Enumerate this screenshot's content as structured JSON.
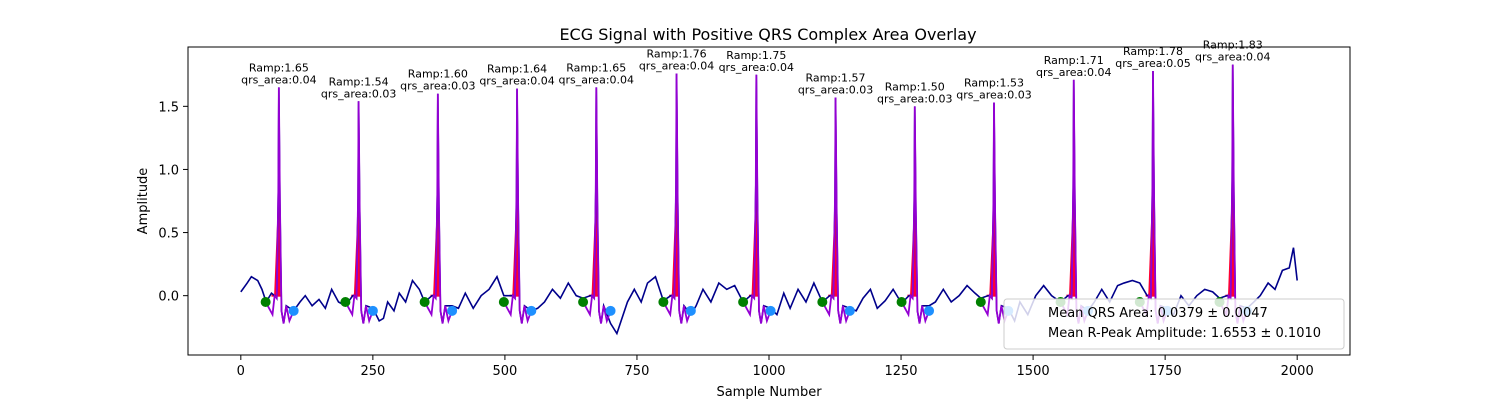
{
  "chart_data": {
    "type": "line",
    "title": "ECG Signal with Positive QRS Complex Area Overlay",
    "xlabel": "Sample Number",
    "ylabel": "Amplitude",
    "xlim": [
      -100,
      2100
    ],
    "ylim": [
      -0.47,
      1.97
    ],
    "xticks": [
      0,
      250,
      500,
      750,
      1000,
      1250,
      1500,
      1750,
      2000
    ],
    "yticks": [
      0.0,
      0.5,
      1.0,
      1.5
    ],
    "ytick_labels": [
      "0.0",
      "0.5",
      "1.0",
      "1.5"
    ],
    "grid": false,
    "colors": {
      "signal": "#00008b",
      "qrs": "#9400d3",
      "area": "#ff0033",
      "q_marker": "#008000",
      "s_marker": "#1e90ff"
    },
    "beats": [
      {
        "r": 72,
        "ramp": 1.65,
        "q": 47,
        "s": 100,
        "ramp_label": "Ramp:1.65",
        "area_label": "qrs_area:0.04"
      },
      {
        "r": 223,
        "ramp": 1.54,
        "q": 198,
        "s": 250,
        "ramp_label": "Ramp:1.54",
        "area_label": "qrs_area:0.03"
      },
      {
        "r": 373,
        "ramp": 1.6,
        "q": 348,
        "s": 400,
        "ramp_label": "Ramp:1.60",
        "area_label": "qrs_area:0.03"
      },
      {
        "r": 523,
        "ramp": 1.64,
        "q": 498,
        "s": 550,
        "ramp_label": "Ramp:1.64",
        "area_label": "qrs_area:0.04"
      },
      {
        "r": 673,
        "ramp": 1.65,
        "q": 648,
        "s": 700,
        "ramp_label": "Ramp:1.65",
        "area_label": "qrs_area:0.04"
      },
      {
        "r": 825,
        "ramp": 1.76,
        "q": 800,
        "s": 852,
        "ramp_label": "Ramp:1.76",
        "area_label": "qrs_area:0.04"
      },
      {
        "r": 976,
        "ramp": 1.75,
        "q": 951,
        "s": 1003,
        "ramp_label": "Ramp:1.75",
        "area_label": "qrs_area:0.04"
      },
      {
        "r": 1126,
        "ramp": 1.57,
        "q": 1101,
        "s": 1153,
        "ramp_label": "Ramp:1.57",
        "area_label": "qrs_area:0.03"
      },
      {
        "r": 1276,
        "ramp": 1.5,
        "q": 1251,
        "s": 1303,
        "ramp_label": "Ramp:1.50",
        "area_label": "qrs_area:0.03"
      },
      {
        "r": 1426,
        "ramp": 1.53,
        "q": 1401,
        "s": 1453,
        "ramp_label": "Ramp:1.53",
        "area_label": "qrs_area:0.03"
      },
      {
        "r": 1577,
        "ramp": 1.71,
        "q": 1552,
        "s": 1604,
        "ramp_label": "Ramp:1.71",
        "area_label": "qrs_area:0.04"
      },
      {
        "r": 1727,
        "ramp": 1.78,
        "q": 1702,
        "s": 1754,
        "ramp_label": "Ramp:1.78",
        "area_label": "qrs_area:0.05"
      },
      {
        "r": 1878,
        "ramp": 1.83,
        "q": 1853,
        "s": 1905,
        "ramp_label": "Ramp:1.83",
        "area_label": "qrs_area:0.04"
      }
    ],
    "baseline": [
      [
        0,
        0.03
      ],
      [
        12,
        0.1
      ],
      [
        20,
        0.15
      ],
      [
        32,
        0.12
      ],
      [
        40,
        0.05
      ],
      [
        48,
        -0.05
      ],
      [
        58,
        0.02
      ],
      [
        65,
        0.0
      ],
      [
        100,
        -0.12
      ],
      [
        112,
        -0.05
      ],
      [
        122,
        0.0
      ],
      [
        135,
        -0.08
      ],
      [
        148,
        -0.03
      ],
      [
        160,
        -0.1
      ],
      [
        172,
        0.05
      ],
      [
        185,
        -0.05
      ],
      [
        198,
        -0.08
      ],
      [
        212,
        0.0
      ],
      [
        250,
        -0.1
      ],
      [
        262,
        -0.2
      ],
      [
        270,
        -0.18
      ],
      [
        278,
        -0.05
      ],
      [
        290,
        -0.12
      ],
      [
        300,
        0.02
      ],
      [
        312,
        -0.05
      ],
      [
        325,
        0.12
      ],
      [
        338,
        0.05
      ],
      [
        348,
        -0.05
      ],
      [
        362,
        0.0
      ],
      [
        400,
        -0.08
      ],
      [
        412,
        -0.1
      ],
      [
        425,
        0.02
      ],
      [
        440,
        -0.1
      ],
      [
        455,
        0.0
      ],
      [
        470,
        0.05
      ],
      [
        485,
        0.15
      ],
      [
        498,
        0.0
      ],
      [
        512,
        0.0
      ],
      [
        550,
        -0.12
      ],
      [
        562,
        -0.1
      ],
      [
        575,
        -0.05
      ],
      [
        590,
        0.05
      ],
      [
        605,
        -0.02
      ],
      [
        620,
        0.1
      ],
      [
        635,
        0.0
      ],
      [
        648,
        -0.02
      ],
      [
        662,
        0.0
      ],
      [
        700,
        -0.22
      ],
      [
        712,
        -0.3
      ],
      [
        720,
        -0.2
      ],
      [
        732,
        -0.05
      ],
      [
        745,
        0.05
      ],
      [
        758,
        -0.05
      ],
      [
        770,
        0.1
      ],
      [
        785,
        0.15
      ],
      [
        800,
        -0.04
      ],
      [
        814,
        0.0
      ],
      [
        852,
        -0.15
      ],
      [
        862,
        -0.08
      ],
      [
        875,
        0.05
      ],
      [
        890,
        -0.05
      ],
      [
        905,
        0.1
      ],
      [
        920,
        0.05
      ],
      [
        935,
        0.08
      ],
      [
        951,
        -0.05
      ],
      [
        965,
        0.0
      ],
      [
        1003,
        -0.1
      ],
      [
        1015,
        -0.15
      ],
      [
        1028,
        0.02
      ],
      [
        1040,
        -0.1
      ],
      [
        1055,
        0.05
      ],
      [
        1070,
        -0.05
      ],
      [
        1085,
        0.1
      ],
      [
        1101,
        -0.05
      ],
      [
        1115,
        0.0
      ],
      [
        1153,
        -0.1
      ],
      [
        1165,
        -0.12
      ],
      [
        1178,
        -0.02
      ],
      [
        1192,
        0.05
      ],
      [
        1205,
        -0.1
      ],
      [
        1220,
        -0.04
      ],
      [
        1235,
        0.05
      ],
      [
        1251,
        -0.06
      ],
      [
        1265,
        0.0
      ],
      [
        1303,
        -0.08
      ],
      [
        1315,
        -0.05
      ],
      [
        1330,
        0.05
      ],
      [
        1345,
        -0.05
      ],
      [
        1360,
        0.0
      ],
      [
        1375,
        0.08
      ],
      [
        1390,
        0.02
      ],
      [
        1401,
        -0.02
      ],
      [
        1415,
        0.0
      ],
      [
        1453,
        -0.1
      ],
      [
        1465,
        -0.2
      ],
      [
        1475,
        -0.05
      ],
      [
        1490,
        -0.15
      ],
      [
        1505,
        0.0
      ],
      [
        1520,
        0.08
      ],
      [
        1535,
        0.0
      ],
      [
        1552,
        -0.05
      ],
      [
        1566,
        0.0
      ],
      [
        1604,
        -0.12
      ],
      [
        1616,
        -0.05
      ],
      [
        1630,
        0.05
      ],
      [
        1645,
        -0.05
      ],
      [
        1660,
        0.08
      ],
      [
        1672,
        0.1
      ],
      [
        1688,
        0.12
      ],
      [
        1702,
        0.1
      ],
      [
        1716,
        0.0
      ],
      [
        1754,
        -0.1
      ],
      [
        1766,
        -0.15
      ],
      [
        1780,
        0.0
      ],
      [
        1795,
        -0.08
      ],
      [
        1810,
        0.0
      ],
      [
        1825,
        0.05
      ],
      [
        1840,
        0.03
      ],
      [
        1853,
        -0.02
      ],
      [
        1867,
        0.0
      ],
      [
        1905,
        -0.1
      ],
      [
        1918,
        -0.05
      ],
      [
        1930,
        0.0
      ],
      [
        1945,
        0.1
      ],
      [
        1958,
        0.05
      ],
      [
        1972,
        0.2
      ],
      [
        1985,
        0.22
      ],
      [
        1993,
        0.38
      ],
      [
        2000,
        0.12
      ]
    ],
    "legend": {
      "placement": "lower-right",
      "entries": [
        "Mean QRS Area: 0.0379 ± 0.0047",
        "Mean R-Peak Amplitude: 1.6553 ± 0.1010"
      ]
    }
  }
}
